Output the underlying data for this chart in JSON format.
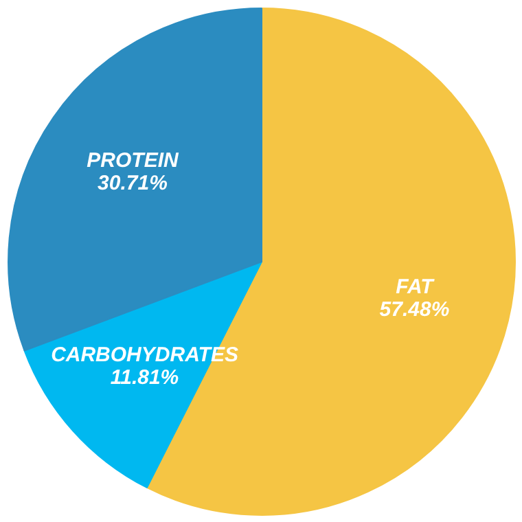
{
  "chart_data": {
    "type": "pie",
    "categories": [
      "FAT",
      "CARBOHYDRATES",
      "PROTEIN"
    ],
    "values": [
      57.48,
      11.81,
      30.71
    ],
    "colors": [
      "#f5c544",
      "#00b8f0",
      "#2b8cc0"
    ],
    "value_labels": [
      "57.48%",
      "11.81%",
      "30.71%"
    ]
  }
}
